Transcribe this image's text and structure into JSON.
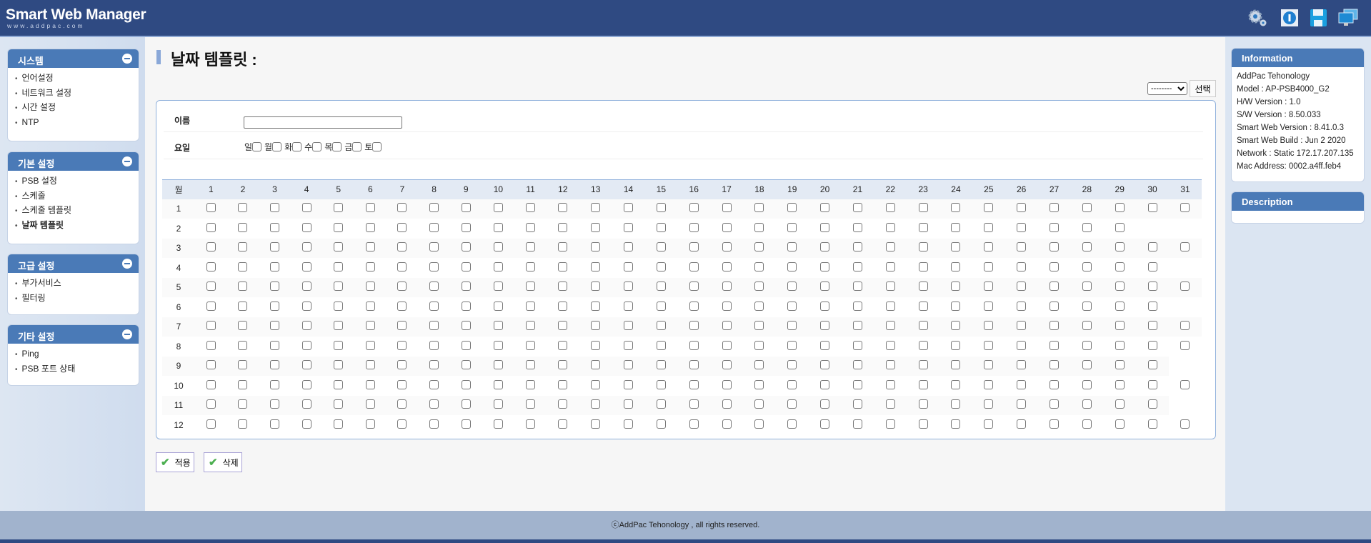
{
  "header": {
    "title": "Smart Web Manager",
    "subtitle": "www.addpac.com",
    "icons": [
      "settings-gears-icon",
      "info-icon",
      "save-disk-icon",
      "monitors-icon"
    ]
  },
  "sidebar": [
    {
      "title": "시스템",
      "items": [
        "언어설정",
        "네트워크 설정",
        "시간 설정",
        "NTP"
      ]
    },
    {
      "title": "기본 설정",
      "items": [
        "PSB 설정",
        "스케줄",
        "스케줄 템플릿",
        "날짜 템플릿"
      ]
    },
    {
      "title": "고급 설정",
      "items": [
        "부가서비스",
        "필터링"
      ]
    },
    {
      "title": "기타 설정",
      "items": [
        "Ping",
        "PSB 포트 상태"
      ]
    }
  ],
  "main": {
    "title": "날짜 템플릿 :",
    "template_select": {
      "value": "--------",
      "button": "선택"
    },
    "name_label": "이름",
    "name_value": "",
    "weekday_label": "요일",
    "weekdays": [
      "일",
      "월",
      "화",
      "수",
      "목",
      "금",
      "토"
    ],
    "grid": {
      "month_header": "월",
      "days": [
        "1",
        "2",
        "3",
        "4",
        "5",
        "6",
        "7",
        "8",
        "9",
        "10",
        "11",
        "12",
        "13",
        "14",
        "15",
        "16",
        "17",
        "18",
        "19",
        "20",
        "21",
        "22",
        "23",
        "24",
        "25",
        "26",
        "27",
        "28",
        "29",
        "30",
        "31"
      ],
      "months": [
        {
          "label": "1",
          "days": 31
        },
        {
          "label": "2",
          "days": 29
        },
        {
          "label": "3",
          "days": 31
        },
        {
          "label": "4",
          "days": 30
        },
        {
          "label": "5",
          "days": 31
        },
        {
          "label": "6",
          "days": 30
        },
        {
          "label": "7",
          "days": 31
        },
        {
          "label": "8",
          "days": 31
        },
        {
          "label": "9",
          "days": 30
        },
        {
          "label": "10",
          "days": 31
        },
        {
          "label": "11",
          "days": 30
        },
        {
          "label": "12",
          "days": 31
        }
      ],
      "checked": []
    },
    "apply_button": "적용",
    "delete_button": "삭제"
  },
  "info": {
    "title": "Information",
    "lines": [
      "AddPac Tehonology",
      "Model : AP-PSB4000_G2",
      "H/W Version : 1.0",
      "S/W Version : 8.50.033",
      "Smart Web Version : 8.41.0.3",
      "Smart Web Build : Jun 2 2020",
      "Network : Static 172.17.207.135",
      "Mac Address: 0002.a4ff.feb4"
    ]
  },
  "description": {
    "title": "Description"
  },
  "footer": "ⓒAddPac Tehonology , all rights reserved.",
  "colors": {
    "header": "#2f4a82",
    "panel_header": "#4a7ab7",
    "footer": "#a1b3cd"
  }
}
